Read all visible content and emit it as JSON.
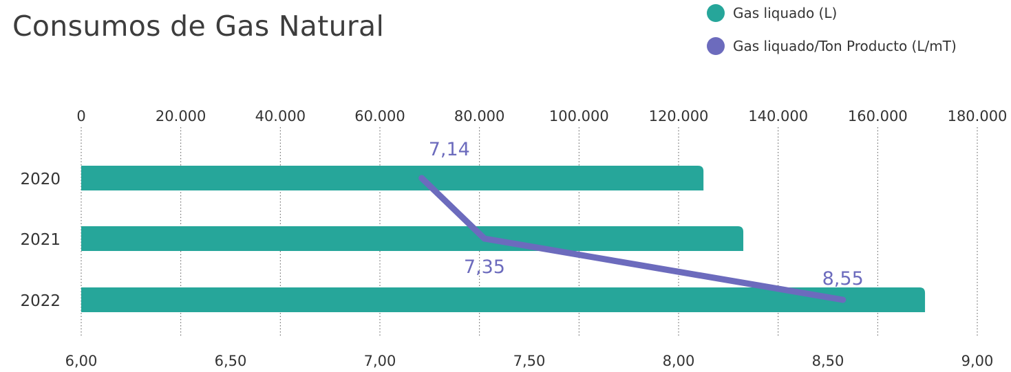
{
  "title": "Consumos de Gas Natural",
  "colors": {
    "bar": "#26a69a",
    "line": "#6c6bbd",
    "grid": "#555555",
    "text": "#333333"
  },
  "legend": [
    {
      "label": "Gas liquado (L)",
      "color": "#26a69a"
    },
    {
      "label": "Gas liquado/Ton Producto (L/mT)",
      "color": "#6c6bbd"
    }
  ],
  "chart_data": {
    "type": "bar",
    "orientation": "horizontal",
    "categories": [
      "2020",
      "2021",
      "2022"
    ],
    "series": [
      {
        "name": "Gas liquado (L)",
        "type": "bar",
        "axis": "top",
        "values": [
          125000,
          133000,
          169500
        ]
      },
      {
        "name": "Gas liquado/Ton Producto (L/mT)",
        "type": "line",
        "axis": "bottom",
        "values": [
          7.14,
          7.35,
          8.55
        ],
        "labels": [
          "7,14",
          "7,35",
          "8,55"
        ]
      }
    ],
    "top_axis": {
      "min": 0,
      "max": 180000,
      "ticks": [
        "0",
        "20.000",
        "40.000",
        "60.000",
        "80.000",
        "100.000",
        "120.000",
        "140.000",
        "160.000",
        "180.000"
      ]
    },
    "bottom_axis": {
      "min": 6,
      "max": 9,
      "ticks": [
        "6,00",
        "6,50",
        "7,00",
        "7,50",
        "8,00",
        "8,50",
        "9,00"
      ]
    },
    "grid": true
  }
}
